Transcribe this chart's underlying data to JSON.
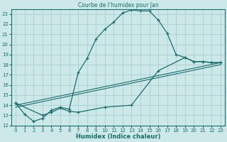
{
  "title": "Courbe de l'humidex pour Jan",
  "xlabel": "Humidex (Indice chaleur)",
  "xlim": [
    -0.5,
    23.5
  ],
  "ylim": [
    12,
    23.5
  ],
  "yticks": [
    12,
    13,
    14,
    15,
    16,
    17,
    18,
    19,
    20,
    21,
    22,
    23
  ],
  "xticks": [
    0,
    1,
    2,
    3,
    4,
    5,
    6,
    7,
    8,
    9,
    10,
    11,
    12,
    13,
    14,
    15,
    16,
    17,
    18,
    19,
    20,
    21,
    22,
    23
  ],
  "bg_color": "#cce8e8",
  "grid_color": "#aad0d0",
  "line_color": "#1a6e6e",
  "line1_x": [
    0,
    1,
    2,
    3,
    4,
    5,
    6,
    7,
    8,
    9,
    10,
    11,
    12,
    13,
    14,
    15,
    16,
    17,
    18,
    19,
    20,
    21,
    22,
    23
  ],
  "line1_y": [
    14.2,
    13.1,
    12.4,
    12.7,
    13.5,
    13.8,
    13.6,
    17.2,
    18.6,
    20.5,
    21.5,
    22.2,
    23.1,
    23.4,
    23.3,
    23.3,
    22.4,
    21.1,
    19.0,
    18.7,
    18.3,
    18.3,
    18.2,
    18.2
  ],
  "line2_x": [
    0,
    3,
    4,
    5,
    6,
    7,
    10,
    13,
    16,
    19,
    20,
    21,
    22,
    23
  ],
  "line2_y": [
    14.2,
    13.0,
    13.3,
    13.7,
    13.4,
    13.3,
    13.8,
    14.0,
    17.4,
    18.7,
    18.3,
    18.3,
    18.2,
    18.2
  ],
  "line3_x": [
    0,
    23
  ],
  "line3_y": [
    14.0,
    18.2
  ],
  "line4_x": [
    0,
    23
  ],
  "line4_y": [
    13.8,
    18.0
  ]
}
